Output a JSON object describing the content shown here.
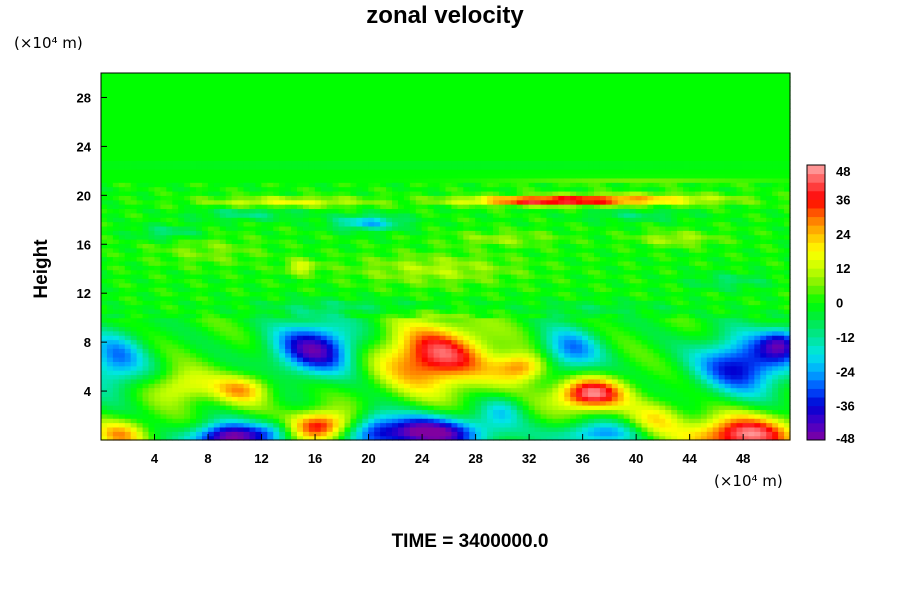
{
  "chart_data": {
    "type": "heatmap",
    "title": "zonal velocity",
    "xlabel": "",
    "ylabel": "Height",
    "x_unit_note": "(×10⁴ m)",
    "y_unit_note": "(×10⁴ m)",
    "footer": "TIME = 3400000.0",
    "xlim": [
      0,
      51.5
    ],
    "ylim": [
      0,
      30
    ],
    "x_ticks": [
      4,
      8,
      12,
      16,
      20,
      24,
      28,
      32,
      36,
      40,
      44,
      48
    ],
    "y_ticks": [
      4,
      8,
      12,
      16,
      20,
      24,
      28
    ],
    "colorbar": {
      "min": -48,
      "max": 48,
      "ticks": [
        48,
        36,
        24,
        12,
        0,
        -12,
        -24,
        -36,
        -48
      ]
    },
    "features": [
      {
        "x": 16,
        "y": 7.5,
        "value": -42
      },
      {
        "x": 9.5,
        "y": 0.5,
        "value": -48
      },
      {
        "x": 24,
        "y": 0.8,
        "value": -48
      },
      {
        "x": 36.5,
        "y": 3.8,
        "value": 44
      },
      {
        "x": 47.5,
        "y": 0.5,
        "value": 44
      },
      {
        "x": 25,
        "y": 6.5,
        "value": 42
      },
      {
        "x": 16,
        "y": 1.3,
        "value": 40
      },
      {
        "x": 48,
        "y": 6.5,
        "value": -36
      },
      {
        "x": 35,
        "y": 7.5,
        "value": -28
      },
      {
        "x": 33,
        "y": 19.6,
        "value": 38
      },
      {
        "x": 20,
        "y": 17.8,
        "value": -22
      }
    ]
  }
}
